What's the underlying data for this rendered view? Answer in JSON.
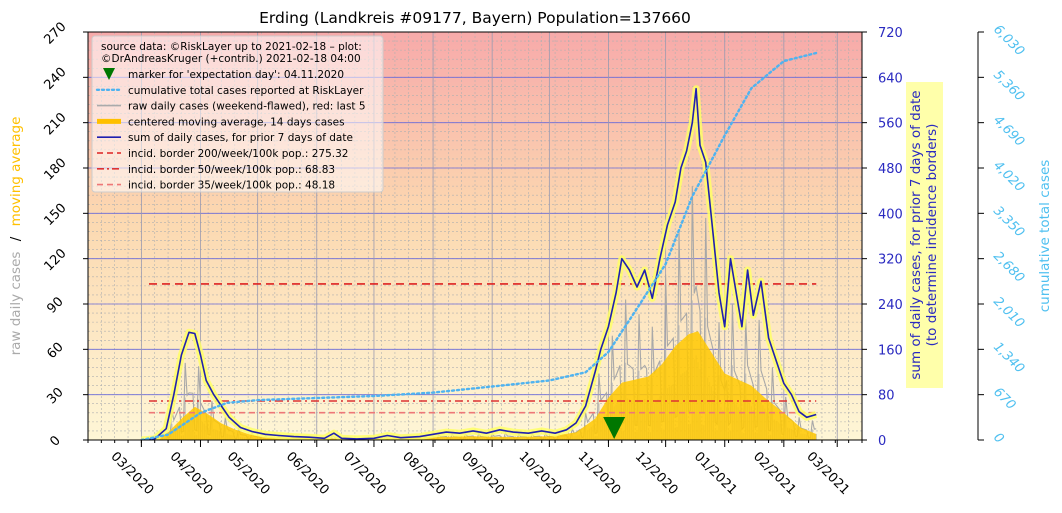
{
  "chart_data": {
    "type": "line",
    "title": "Erding (Landkreis #09177, Bayern) Population=137660",
    "left_axis": {
      "label_parts": [
        "raw daily cases",
        "/",
        "moving average"
      ],
      "label_colors": [
        "#aaaaaa",
        "#000000",
        "#ffc000"
      ],
      "ylim": [
        0,
        270
      ],
      "ticks": [
        0,
        30,
        60,
        90,
        120,
        150,
        180,
        210,
        240,
        270
      ]
    },
    "right_axis": {
      "label_lines": [
        "sum of daily cases, for prior 7 days of date",
        "(to determine incidence borders)"
      ],
      "ylim": [
        0,
        720
      ],
      "ticks": [
        0,
        80,
        160,
        240,
        320,
        400,
        480,
        560,
        640,
        720
      ],
      "color": "#2a2ac0"
    },
    "far_right_axis": {
      "label": "cumulative total cases",
      "ylim": [
        0,
        6030
      ],
      "ticks": [
        "0",
        "670",
        "1,340",
        "2,010",
        "2,680",
        "3,350",
        "4,020",
        "4,690",
        "5,360",
        "6,030"
      ],
      "color": "#4fc0f0"
    },
    "x_axis": {
      "ticks": [
        "03/2020",
        "04/2020",
        "05/2020",
        "06/2020",
        "07/2020",
        "08/2020",
        "09/2020",
        "10/2020",
        "11/2020",
        "12/2020",
        "01/2021",
        "02/2021",
        "03/2021"
      ]
    },
    "legend": {
      "source_lines": [
        "source data: ©RiskLayer up to 2021-02-18 – plot:",
        "©DrAndreasKruger (+contrib.) 2021-02-18 04:00"
      ],
      "entries": [
        {
          "label": "marker for 'expectation day': 04.11.2020",
          "kind": "marker",
          "color": "#007700"
        },
        {
          "label": "cumulative total cases reported at RiskLayer",
          "kind": "dotted",
          "color": "#4fb3f0"
        },
        {
          "label": "raw daily cases (weekend-flawed), red: last 5",
          "kind": "line",
          "color": "#aaaaaa"
        },
        {
          "label": "centered moving average, 14 days cases",
          "kind": "thick",
          "color": "#ffc000"
        },
        {
          "label": "sum of daily cases, for prior 7 days of date",
          "kind": "line",
          "color": "#2020b0"
        },
        {
          "label": "incid. border 200/week/100k pop.: 275.32",
          "kind": "dash",
          "color": "#dd2222"
        },
        {
          "label": "incid. border 50/week/100k pop.: 68.83",
          "kind": "dashdot",
          "color": "#dd3333"
        },
        {
          "label": "incid. border 35/week/100k pop.: 48.18",
          "kind": "dash",
          "color": "#ee7777"
        }
      ]
    },
    "expectation_day": "2020-11-04",
    "incidence_borders": [
      275.32,
      68.83,
      48.18
    ],
    "series": [
      {
        "name": "sum of daily cases, for prior 7 days of date",
        "axis": "right",
        "points": [
          [
            "2020-03-01",
            0
          ],
          [
            "2020-03-08",
            2
          ],
          [
            "2020-03-14",
            20
          ],
          [
            "2020-03-18",
            80
          ],
          [
            "2020-03-22",
            150
          ],
          [
            "2020-03-26",
            190
          ],
          [
            "2020-03-29",
            188
          ],
          [
            "2020-04-01",
            150
          ],
          [
            "2020-04-04",
            105
          ],
          [
            "2020-04-08",
            80
          ],
          [
            "2020-04-12",
            60
          ],
          [
            "2020-04-16",
            40
          ],
          [
            "2020-04-22",
            22
          ],
          [
            "2020-04-28",
            15
          ],
          [
            "2020-05-05",
            10
          ],
          [
            "2020-05-12",
            8
          ],
          [
            "2020-05-20",
            6
          ],
          [
            "2020-05-28",
            5
          ],
          [
            "2020-06-05",
            3
          ],
          [
            "2020-06-10",
            12
          ],
          [
            "2020-06-14",
            3
          ],
          [
            "2020-06-22",
            2
          ],
          [
            "2020-07-01",
            3
          ],
          [
            "2020-07-08",
            8
          ],
          [
            "2020-07-15",
            4
          ],
          [
            "2020-07-25",
            6
          ],
          [
            "2020-08-01",
            10
          ],
          [
            "2020-08-08",
            14
          ],
          [
            "2020-08-15",
            12
          ],
          [
            "2020-08-22",
            16
          ],
          [
            "2020-08-29",
            12
          ],
          [
            "2020-09-05",
            18
          ],
          [
            "2020-09-12",
            14
          ],
          [
            "2020-09-20",
            12
          ],
          [
            "2020-09-27",
            16
          ],
          [
            "2020-10-04",
            12
          ],
          [
            "2020-10-10",
            18
          ],
          [
            "2020-10-15",
            30
          ],
          [
            "2020-10-20",
            60
          ],
          [
            "2020-10-25",
            120
          ],
          [
            "2020-10-28",
            160
          ],
          [
            "2020-11-01",
            200
          ],
          [
            "2020-11-05",
            260
          ],
          [
            "2020-11-08",
            320
          ],
          [
            "2020-11-12",
            300
          ],
          [
            "2020-11-16",
            270
          ],
          [
            "2020-11-20",
            300
          ],
          [
            "2020-11-24",
            250
          ],
          [
            "2020-11-28",
            320
          ],
          [
            "2020-12-02",
            380
          ],
          [
            "2020-12-06",
            420
          ],
          [
            "2020-12-09",
            480
          ],
          [
            "2020-12-12",
            510
          ],
          [
            "2020-12-15",
            560
          ],
          [
            "2020-12-17",
            620
          ],
          [
            "2020-12-19",
            520
          ],
          [
            "2020-12-22",
            490
          ],
          [
            "2020-12-26",
            360
          ],
          [
            "2020-12-29",
            260
          ],
          [
            "2021-01-01",
            200
          ],
          [
            "2021-01-04",
            320
          ],
          [
            "2021-01-07",
            260
          ],
          [
            "2021-01-10",
            200
          ],
          [
            "2021-01-13",
            300
          ],
          [
            "2021-01-16",
            220
          ],
          [
            "2021-01-20",
            280
          ],
          [
            "2021-01-24",
            180
          ],
          [
            "2021-01-28",
            140
          ],
          [
            "2021-02-01",
            100
          ],
          [
            "2021-02-05",
            80
          ],
          [
            "2021-02-09",
            50
          ],
          [
            "2021-02-13",
            40
          ],
          [
            "2021-02-18",
            45
          ]
        ]
      },
      {
        "name": "centered moving average, 14 days cases",
        "axis": "left",
        "points": [
          [
            "2020-03-01",
            0
          ],
          [
            "2020-03-08",
            1
          ],
          [
            "2020-03-15",
            5
          ],
          [
            "2020-03-22",
            14
          ],
          [
            "2020-03-29",
            22
          ],
          [
            "2020-04-05",
            17
          ],
          [
            "2020-04-12",
            11
          ],
          [
            "2020-04-19",
            7
          ],
          [
            "2020-04-26",
            4
          ],
          [
            "2020-05-05",
            2
          ],
          [
            "2020-05-20",
            1.5
          ],
          [
            "2020-06-10",
            1
          ],
          [
            "2020-07-01",
            1
          ],
          [
            "2020-08-01",
            2
          ],
          [
            "2020-08-20",
            2.5
          ],
          [
            "2020-09-10",
            2
          ],
          [
            "2020-10-01",
            2.5
          ],
          [
            "2020-10-15",
            5
          ],
          [
            "2020-10-25",
            14
          ],
          [
            "2020-11-01",
            28
          ],
          [
            "2020-11-08",
            38
          ],
          [
            "2020-11-15",
            40
          ],
          [
            "2020-11-22",
            42
          ],
          [
            "2020-11-29",
            50
          ],
          [
            "2020-12-06",
            62
          ],
          [
            "2020-12-13",
            70
          ],
          [
            "2020-12-18",
            72
          ],
          [
            "2020-12-25",
            58
          ],
          [
            "2021-01-01",
            44
          ],
          [
            "2021-01-08",
            40
          ],
          [
            "2021-01-15",
            36
          ],
          [
            "2021-01-22",
            28
          ],
          [
            "2021-02-01",
            18
          ],
          [
            "2021-02-10",
            8
          ],
          [
            "2021-02-18",
            4
          ]
        ]
      },
      {
        "name": "cumulative total cases reported at RiskLayer",
        "axis": "far_right",
        "points": [
          [
            "2020-03-01",
            0
          ],
          [
            "2020-03-15",
            80
          ],
          [
            "2020-04-01",
            400
          ],
          [
            "2020-04-15",
            550
          ],
          [
            "2020-05-01",
            590
          ],
          [
            "2020-06-01",
            620
          ],
          [
            "2020-07-01",
            650
          ],
          [
            "2020-08-01",
            700
          ],
          [
            "2020-09-01",
            790
          ],
          [
            "2020-10-01",
            880
          ],
          [
            "2020-10-20",
            1000
          ],
          [
            "2020-11-01",
            1300
          ],
          [
            "2020-11-15",
            1900
          ],
          [
            "2020-12-01",
            2600
          ],
          [
            "2020-12-15",
            3600
          ],
          [
            "2021-01-01",
            4500
          ],
          [
            "2021-01-15",
            5200
          ],
          [
            "2021-02-01",
            5600
          ],
          [
            "2021-02-18",
            5720
          ]
        ]
      }
    ]
  }
}
